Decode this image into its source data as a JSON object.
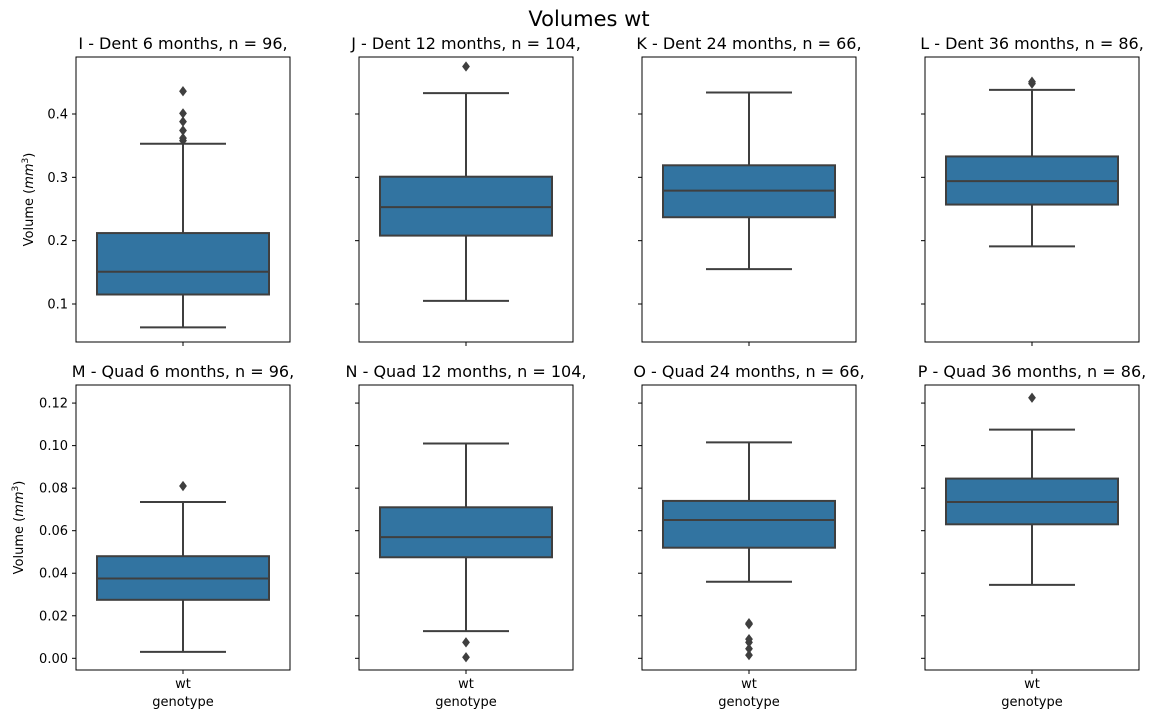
{
  "figure": {
    "title": "Volumes wt"
  },
  "chart_data": [
    {
      "type": "box",
      "title": "I - Dent 6 months, n = 96,",
      "categories": [
        "wt"
      ],
      "xlabel": "",
      "ylabel": "Volume ($mm^3$)",
      "ylim": [
        0.04,
        0.49
      ],
      "yticks": [
        "0.1",
        "0.2",
        "0.3",
        "0.4"
      ],
      "box": {
        "whisker_low": 0.063,
        "q1": 0.115,
        "median": 0.151,
        "q3": 0.212,
        "whisker_high": 0.353
      },
      "outliers": [
        0.358,
        0.362,
        0.374,
        0.388,
        0.401,
        0.436
      ]
    },
    {
      "type": "box",
      "title": "J - Dent 12 months, n = 104,",
      "categories": [
        "wt"
      ],
      "xlabel": "",
      "ylabel": "",
      "ylim": [
        0.04,
        0.49
      ],
      "yticks": [],
      "box": {
        "whisker_low": 0.105,
        "q1": 0.208,
        "median": 0.253,
        "q3": 0.301,
        "whisker_high": 0.433
      },
      "outliers": [
        0.475
      ]
    },
    {
      "type": "box",
      "title": "K - Dent 24 months, n = 66,",
      "categories": [
        "wt"
      ],
      "xlabel": "",
      "ylabel": "",
      "ylim": [
        0.04,
        0.49
      ],
      "yticks": [],
      "box": {
        "whisker_low": 0.155,
        "q1": 0.237,
        "median": 0.279,
        "q3": 0.319,
        "whisker_high": 0.434
      },
      "outliers": []
    },
    {
      "type": "box",
      "title": "L - Dent 36 months, n = 86,",
      "categories": [
        "wt"
      ],
      "xlabel": "",
      "ylabel": "",
      "ylim": [
        0.04,
        0.49
      ],
      "yticks": [],
      "box": {
        "whisker_low": 0.191,
        "q1": 0.257,
        "median": 0.294,
        "q3": 0.333,
        "whisker_high": 0.438
      },
      "outliers": [
        0.448,
        0.451
      ]
    },
    {
      "type": "box",
      "title": "M - Quad 6 months, n = 96,",
      "categories": [
        "wt"
      ],
      "xlabel": "genotype",
      "ylabel": "Volume ($mm^3$)",
      "ylim": [
        -0.0055,
        0.1285
      ],
      "yticks": [
        "0.00",
        "0.02",
        "0.04",
        "0.06",
        "0.08",
        "0.10",
        "0.12"
      ],
      "box": {
        "whisker_low": 0.003,
        "q1": 0.0275,
        "median": 0.0375,
        "q3": 0.048,
        "whisker_high": 0.0735
      },
      "outliers": [
        0.081
      ]
    },
    {
      "type": "box",
      "title": "N - Quad 12 months, n = 104,",
      "categories": [
        "wt"
      ],
      "xlabel": "genotype",
      "ylabel": "",
      "ylim": [
        -0.0055,
        0.1285
      ],
      "yticks": [],
      "box": {
        "whisker_low": 0.0128,
        "q1": 0.0475,
        "median": 0.057,
        "q3": 0.071,
        "whisker_high": 0.101
      },
      "outliers": [
        0.0005,
        0.0075
      ]
    },
    {
      "type": "box",
      "title": "O - Quad 24 months, n = 66,",
      "categories": [
        "wt"
      ],
      "xlabel": "genotype",
      "ylabel": "",
      "ylim": [
        -0.0055,
        0.1285
      ],
      "yticks": [],
      "box": {
        "whisker_low": 0.036,
        "q1": 0.052,
        "median": 0.065,
        "q3": 0.074,
        "whisker_high": 0.1015
      },
      "outliers": [
        0.0015,
        0.0045,
        0.0075,
        0.009,
        0.016,
        0.0165
      ]
    },
    {
      "type": "box",
      "title": "P - Quad 36 months, n = 86,",
      "categories": [
        "wt"
      ],
      "xlabel": "genotype",
      "ylabel": "",
      "ylim": [
        -0.0055,
        0.1285
      ],
      "yticks": [],
      "box": {
        "whisker_low": 0.0345,
        "q1": 0.063,
        "median": 0.0735,
        "q3": 0.0845,
        "whisker_high": 0.1075
      },
      "outliers": [
        0.1225
      ]
    }
  ],
  "style": {
    "box_fill": "#3274a1",
    "line_color": "#3f3f3f",
    "axis_color": "#000000"
  }
}
